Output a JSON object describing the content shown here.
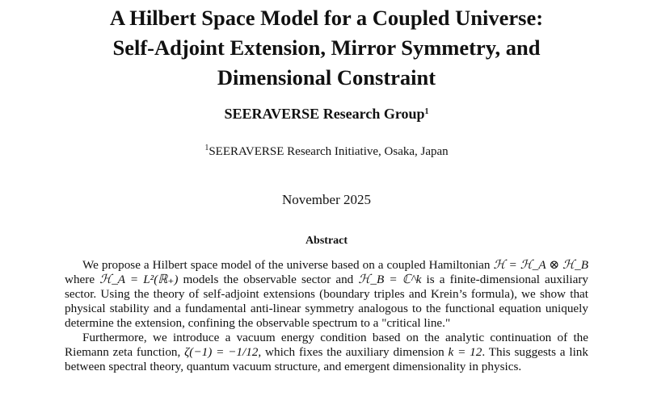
{
  "paper": {
    "title_lines": [
      "A Hilbert Space Model for a Coupled Universe:",
      "Self-Adjoint Extension, Mirror Symmetry, and",
      "Dimensional Constraint"
    ],
    "author": "SEERAVERSE Research Group",
    "author_mark": "1",
    "affiliation_mark": "1",
    "affiliation": "SEERAVERSE Research Initiative, Osaka, Japan",
    "date": "November 2025",
    "abstract_heading": "Abstract",
    "abstract_paragraphs": [
      [
        {
          "t": "We propose a Hilbert space model of the universe based on a coupled Hamiltonian "
        },
        {
          "t": "ℋ = ℋ_A ⊗ ℋ_B",
          "m": true
        },
        {
          "t": " where "
        },
        {
          "t": "ℋ_A = L²(ℝ₊)",
          "m": true
        },
        {
          "t": " models the observable sector and "
        },
        {
          "t": "ℋ_B = ℂ^k",
          "m": true
        },
        {
          "t": " is a finite-dimensional auxiliary sector. Using the theory of self-adjoint extensions (boundary triples and Krein’s formula), we show that physical stability and a fundamental anti-linear symmetry analogous to the functional equation uniquely determine the extension, confining the observable spectrum to a \"critical line.\""
        }
      ],
      [
        {
          "t": "Furthermore, we introduce a vacuum energy condition based on the analytic continuation of the Riemann zeta function, "
        },
        {
          "t": "ζ(−1) = −1/12",
          "m": true
        },
        {
          "t": ", which fixes the auxiliary dimension "
        },
        {
          "t": "k = 12",
          "m": true
        },
        {
          "t": ". This suggests a link between spectral theory, quantum vacuum structure, and emergent dimensionality in physics."
        }
      ]
    ]
  }
}
